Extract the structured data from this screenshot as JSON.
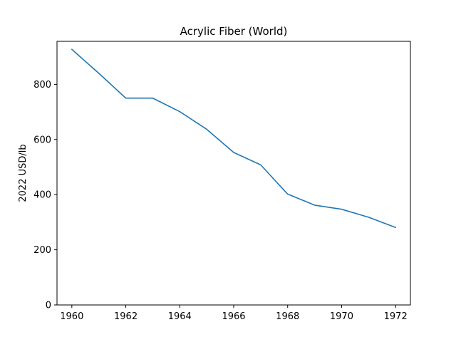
{
  "chart_data": {
    "type": "line",
    "title": "Acrylic Fiber (World)",
    "xlabel": "",
    "ylabel": "2022 USD/lb",
    "xlim": [
      1959.45,
      1972.55
    ],
    "ylim": [
      0,
      956
    ],
    "x_ticks": [
      1960,
      1962,
      1964,
      1966,
      1968,
      1970,
      1972
    ],
    "y_ticks": [
      0,
      200,
      400,
      600,
      800
    ],
    "grid": false,
    "legend": "none",
    "series": [
      {
        "color": "#1f77b4",
        "x": [
          1960,
          1961,
          1962,
          1963,
          1964,
          1965,
          1966,
          1967,
          1968,
          1969,
          1970,
          1971,
          1972
        ],
        "y": [
          927,
          840,
          750,
          750,
          701,
          637,
          553,
          508,
          402,
          362,
          347,
          318,
          281
        ]
      }
    ]
  }
}
